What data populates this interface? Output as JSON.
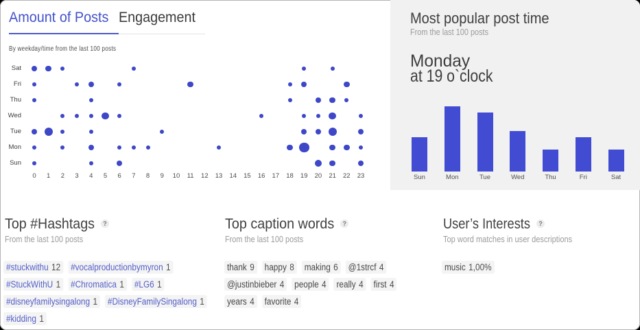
{
  "tabs": {
    "active_label": "Amount of Posts",
    "inactive_label": "Engagement"
  },
  "scatter_note": "By weekday/time from the last 100 posts",
  "panel": {
    "title": "Most popular post time",
    "subtitle": "From the last 100 posts",
    "highlight_line1": "Monday",
    "highlight_line2": "at 19 o`clock"
  },
  "sections": {
    "hashtags": {
      "title": "Top #Hashtags",
      "help": "?",
      "subtitle": "From the last 100 posts",
      "rows": [
        [
          {
            "label": "#stuckwithu",
            "count": "12"
          },
          {
            "label": "#vocalproductionbymyron",
            "count": "1"
          }
        ],
        [
          {
            "label": "#StuckWithU",
            "count": "1"
          },
          {
            "label": "#Chromatica",
            "count": "1"
          },
          {
            "label": "#LG6",
            "count": "1"
          }
        ],
        [
          {
            "label": "#disneyfamilysingalong",
            "count": "1"
          },
          {
            "label": "#DisneyFamilySingalong",
            "count": "1"
          }
        ],
        [
          {
            "label": "#kidding",
            "count": "1"
          }
        ]
      ]
    },
    "captions": {
      "title": "Top caption words",
      "help": "?",
      "subtitle": "From the last 100 posts",
      "rows": [
        [
          {
            "label": "thank",
            "count": "9"
          },
          {
            "label": "happy",
            "count": "8"
          },
          {
            "label": "making",
            "count": "6"
          },
          {
            "label": "@1strcf",
            "count": "4"
          }
        ],
        [
          {
            "label": "@justinbieber",
            "count": "4"
          },
          {
            "label": "people",
            "count": "4"
          },
          {
            "label": "really",
            "count": "4"
          },
          {
            "label": "first",
            "count": "4"
          }
        ],
        [
          {
            "label": "years",
            "count": "4"
          },
          {
            "label": "favorite",
            "count": "4"
          }
        ]
      ]
    },
    "interests": {
      "title": "User’s Interests",
      "help": "?",
      "subtitle": "Top word matches in user descriptions",
      "rows": [
        [
          {
            "label": "music",
            "count": "1,00%"
          }
        ]
      ]
    }
  },
  "chart_data": [
    {
      "type": "scatter",
      "title": "Amount of Posts",
      "subtitle": "By weekday/time from the last 100 posts",
      "x_ticks": [
        "0",
        "1",
        "2",
        "3",
        "4",
        "5",
        "6",
        "7",
        "8",
        "9",
        "10",
        "11",
        "12",
        "13",
        "14",
        "15",
        "16",
        "17",
        "18",
        "19",
        "20",
        "21",
        "22",
        "23"
      ],
      "y_categories": [
        "Sat",
        "Fri",
        "Thu",
        "Wed",
        "Tue",
        "Mon",
        "Sun"
      ],
      "points": [
        {
          "day": "Sat",
          "hour": 0,
          "value": 2
        },
        {
          "day": "Sat",
          "hour": 1,
          "value": 2
        },
        {
          "day": "Sat",
          "hour": 2,
          "value": 1
        },
        {
          "day": "Sat",
          "hour": 7,
          "value": 1
        },
        {
          "day": "Sat",
          "hour": 19,
          "value": 1
        },
        {
          "day": "Sat",
          "hour": 21,
          "value": 1
        },
        {
          "day": "Fri",
          "hour": 0,
          "value": 1
        },
        {
          "day": "Fri",
          "hour": 3,
          "value": 1
        },
        {
          "day": "Fri",
          "hour": 4,
          "value": 2
        },
        {
          "day": "Fri",
          "hour": 6,
          "value": 1
        },
        {
          "day": "Fri",
          "hour": 11,
          "value": 2
        },
        {
          "day": "Fri",
          "hour": 18,
          "value": 1
        },
        {
          "day": "Fri",
          "hour": 19,
          "value": 2
        },
        {
          "day": "Fri",
          "hour": 22,
          "value": 2
        },
        {
          "day": "Thu",
          "hour": 0,
          "value": 1
        },
        {
          "day": "Thu",
          "hour": 4,
          "value": 1
        },
        {
          "day": "Thu",
          "hour": 18,
          "value": 1
        },
        {
          "day": "Thu",
          "hour": 20,
          "value": 2
        },
        {
          "day": "Thu",
          "hour": 21,
          "value": 2
        },
        {
          "day": "Thu",
          "hour": 22,
          "value": 1
        },
        {
          "day": "Wed",
          "hour": 2,
          "value": 1
        },
        {
          "day": "Wed",
          "hour": 3,
          "value": 1
        },
        {
          "day": "Wed",
          "hour": 4,
          "value": 1
        },
        {
          "day": "Wed",
          "hour": 5,
          "value": 3
        },
        {
          "day": "Wed",
          "hour": 6,
          "value": 1
        },
        {
          "day": "Wed",
          "hour": 16,
          "value": 1
        },
        {
          "day": "Wed",
          "hour": 19,
          "value": 1
        },
        {
          "day": "Wed",
          "hour": 20,
          "value": 1
        },
        {
          "day": "Wed",
          "hour": 21,
          "value": 3
        },
        {
          "day": "Wed",
          "hour": 23,
          "value": 1
        },
        {
          "day": "Tue",
          "hour": 0,
          "value": 2
        },
        {
          "day": "Tue",
          "hour": 1,
          "value": 4
        },
        {
          "day": "Tue",
          "hour": 2,
          "value": 1
        },
        {
          "day": "Tue",
          "hour": 4,
          "value": 1
        },
        {
          "day": "Tue",
          "hour": 9,
          "value": 1
        },
        {
          "day": "Tue",
          "hour": 19,
          "value": 2
        },
        {
          "day": "Tue",
          "hour": 20,
          "value": 2
        },
        {
          "day": "Tue",
          "hour": 21,
          "value": 4
        },
        {
          "day": "Tue",
          "hour": 23,
          "value": 2
        },
        {
          "day": "Mon",
          "hour": 0,
          "value": 1
        },
        {
          "day": "Mon",
          "hour": 2,
          "value": 1
        },
        {
          "day": "Mon",
          "hour": 4,
          "value": 2
        },
        {
          "day": "Mon",
          "hour": 6,
          "value": 1
        },
        {
          "day": "Mon",
          "hour": 7,
          "value": 1
        },
        {
          "day": "Mon",
          "hour": 8,
          "value": 1
        },
        {
          "day": "Mon",
          "hour": 13,
          "value": 1
        },
        {
          "day": "Mon",
          "hour": 18,
          "value": 2
        },
        {
          "day": "Mon",
          "hour": 19,
          "value": 6
        },
        {
          "day": "Mon",
          "hour": 21,
          "value": 2
        },
        {
          "day": "Mon",
          "hour": 22,
          "value": 2
        },
        {
          "day": "Mon",
          "hour": 23,
          "value": 1
        },
        {
          "day": "Sun",
          "hour": 0,
          "value": 1
        },
        {
          "day": "Sun",
          "hour": 4,
          "value": 1
        },
        {
          "day": "Sun",
          "hour": 6,
          "value": 2
        },
        {
          "day": "Sun",
          "hour": 20,
          "value": 3
        },
        {
          "day": "Sun",
          "hour": 21,
          "value": 2
        },
        {
          "day": "Sun",
          "hour": 23,
          "value": 2
        }
      ]
    },
    {
      "type": "bar",
      "title": "Most popular post time",
      "categories": [
        "Sun",
        "Mon",
        "Tue",
        "Wed",
        "Thu",
        "Fri",
        "Sat"
      ],
      "values": [
        11,
        21,
        19,
        13,
        7,
        11,
        7
      ],
      "highlight": "Monday at 19 o`clock"
    }
  ],
  "colors": {
    "accent": "#4353cc",
    "dot": "#3d47c8",
    "bar": "#424cd3",
    "hashtag_link": "#5560c8",
    "panel_bg": "#f1f1f1",
    "pill_bg": "#f4f4f4"
  }
}
